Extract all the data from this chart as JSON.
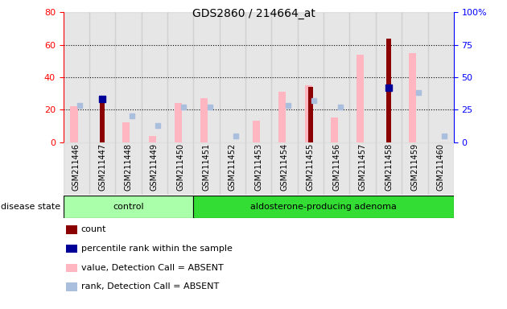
{
  "title": "GDS2860 / 214664_at",
  "samples": [
    "GSM211446",
    "GSM211447",
    "GSM211448",
    "GSM211449",
    "GSM211450",
    "GSM211451",
    "GSM211452",
    "GSM211453",
    "GSM211454",
    "GSM211455",
    "GSM211456",
    "GSM211457",
    "GSM211458",
    "GSM211459",
    "GSM211460"
  ],
  "count": [
    null,
    26,
    null,
    null,
    null,
    null,
    null,
    null,
    null,
    34,
    null,
    null,
    64,
    null,
    null
  ],
  "percentile_rank": [
    null,
    33,
    null,
    null,
    null,
    null,
    null,
    null,
    null,
    null,
    null,
    null,
    42,
    null,
    null
  ],
  "value_absent": [
    22,
    null,
    12,
    4,
    24,
    27,
    null,
    13,
    31,
    35,
    15,
    54,
    null,
    55,
    null
  ],
  "rank_absent": [
    28,
    null,
    20,
    13,
    27,
    27,
    5,
    null,
    28,
    32,
    27,
    null,
    null,
    38,
    5
  ],
  "ylim_left": [
    0,
    80
  ],
  "ylim_right": [
    0,
    100
  ],
  "yticks_left": [
    0,
    20,
    40,
    60,
    80
  ],
  "yticks_right": [
    0,
    25,
    50,
    75,
    100
  ],
  "color_count": "#8B0000",
  "color_percentile": "#000099",
  "color_value_absent": "#FFB6C1",
  "color_rank_absent": "#AABEDD",
  "color_group_control": "#AAFFAA",
  "color_group_adenoma": "#33DD33",
  "color_gray_col": "#C8C8C8",
  "control_count": 5,
  "adenoma_count": 10,
  "legend_items": [
    "count",
    "percentile rank within the sample",
    "value, Detection Call = ABSENT",
    "rank, Detection Call = ABSENT"
  ],
  "legend_colors": [
    "#8B0000",
    "#000099",
    "#FFB6C1",
    "#AABEDD"
  ]
}
